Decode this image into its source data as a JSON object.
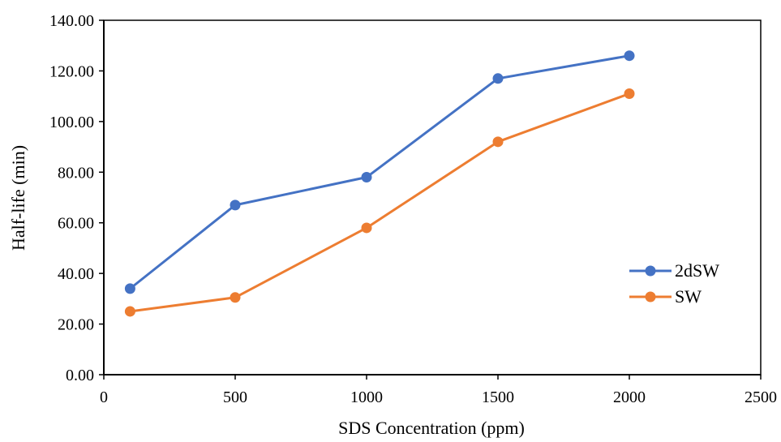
{
  "chart_data": {
    "type": "line",
    "title": "",
    "xlabel": "SDS Concentration (ppm)",
    "ylabel": "Half-life (min)",
    "xlim": [
      0,
      2500
    ],
    "ylim": [
      0,
      140
    ],
    "xticks": [
      0,
      500,
      1000,
      1500,
      2000,
      2500
    ],
    "yticks": [
      0,
      20,
      40,
      60,
      80,
      100,
      120,
      140
    ],
    "xtick_labels": [
      "0",
      "500",
      "1000",
      "1500",
      "2000",
      "2500"
    ],
    "ytick_labels": [
      "0.00",
      "20.00",
      "40.00",
      "60.00",
      "80.00",
      "100.00",
      "120.00",
      "140.00"
    ],
    "grid": false,
    "legend_position": "right",
    "x": [
      100,
      500,
      1000,
      1500,
      2000
    ],
    "series": [
      {
        "name": "2dSW",
        "color": "#4472C4",
        "values": [
          34,
          67,
          78,
          117,
          126
        ]
      },
      {
        "name": "SW",
        "color": "#ED7D31",
        "values": [
          25,
          30.5,
          58,
          92,
          111
        ]
      }
    ]
  }
}
